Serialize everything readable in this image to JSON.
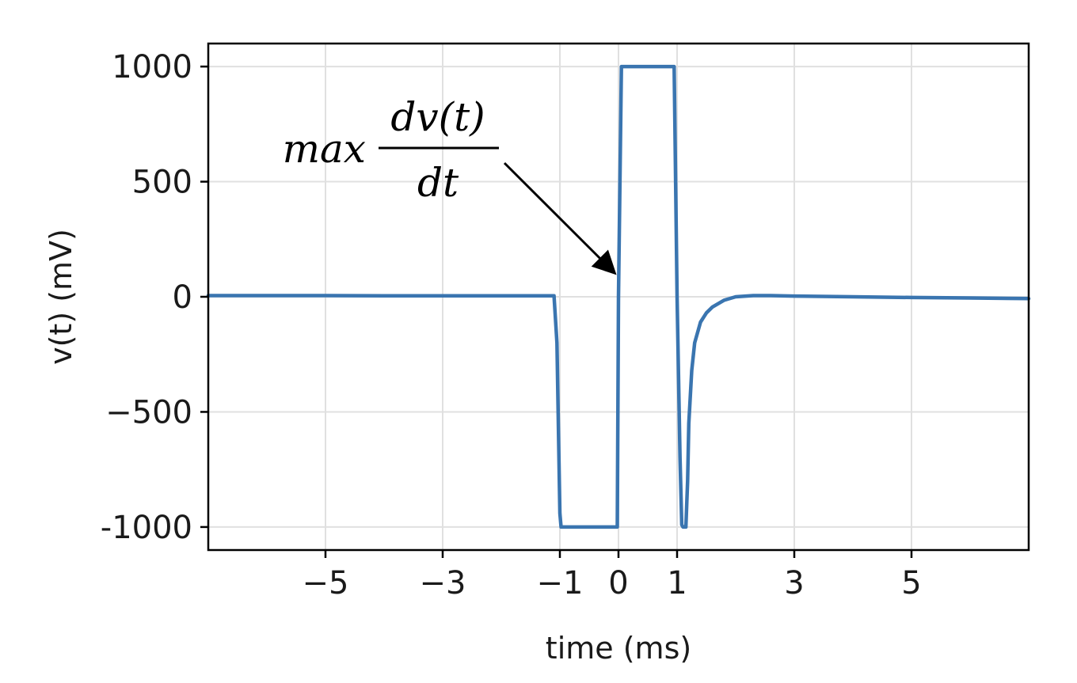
{
  "chart_data": {
    "type": "line",
    "title": "",
    "xlabel": "time (ms)",
    "ylabel": "v(t) (mV)",
    "xlim": [
      -7,
      7
    ],
    "ylim": [
      -1100,
      1100
    ],
    "grid": true,
    "x_ticks": [
      -5,
      -3,
      -1,
      0,
      1,
      3,
      5
    ],
    "x_tick_labels": [
      "−5",
      "−3",
      "−1",
      "0",
      "1",
      "3",
      "5"
    ],
    "y_ticks": [
      1000,
      500,
      0,
      -500,
      -1000
    ],
    "y_tick_labels": [
      "1000",
      "500",
      "0",
      "−500",
      "-1000"
    ],
    "series": [
      {
        "color": "#3a75b0",
        "x": [
          -7,
          -6,
          -5,
          -4,
          -3,
          -2,
          -1.1,
          -1.05,
          -1.0,
          -0.98,
          -0.02,
          0.0,
          0.05,
          0.95,
          1.0,
          1.05,
          1.08,
          1.1,
          1.15,
          1.18,
          1.2,
          1.25,
          1.3,
          1.4,
          1.5,
          1.6,
          1.8,
          2.0,
          2.3,
          2.6,
          3.0,
          4.0,
          5.0,
          6.0,
          7.0
        ],
        "y": [
          5,
          5,
          5,
          4,
          4,
          4,
          4,
          -200,
          -940,
          -1000,
          -1000,
          0,
          1000,
          1000,
          0,
          -700,
          -990,
          -1000,
          -1000,
          -800,
          -550,
          -320,
          -200,
          -110,
          -70,
          -45,
          -15,
          0,
          5,
          5,
          3,
          0,
          -3,
          -5,
          -8
        ]
      }
    ],
    "annotations": [
      {
        "prefix": "max",
        "numerator": "dv(t)",
        "denominator": "dt",
        "points_to": [
          -0.05,
          120
        ]
      }
    ]
  }
}
